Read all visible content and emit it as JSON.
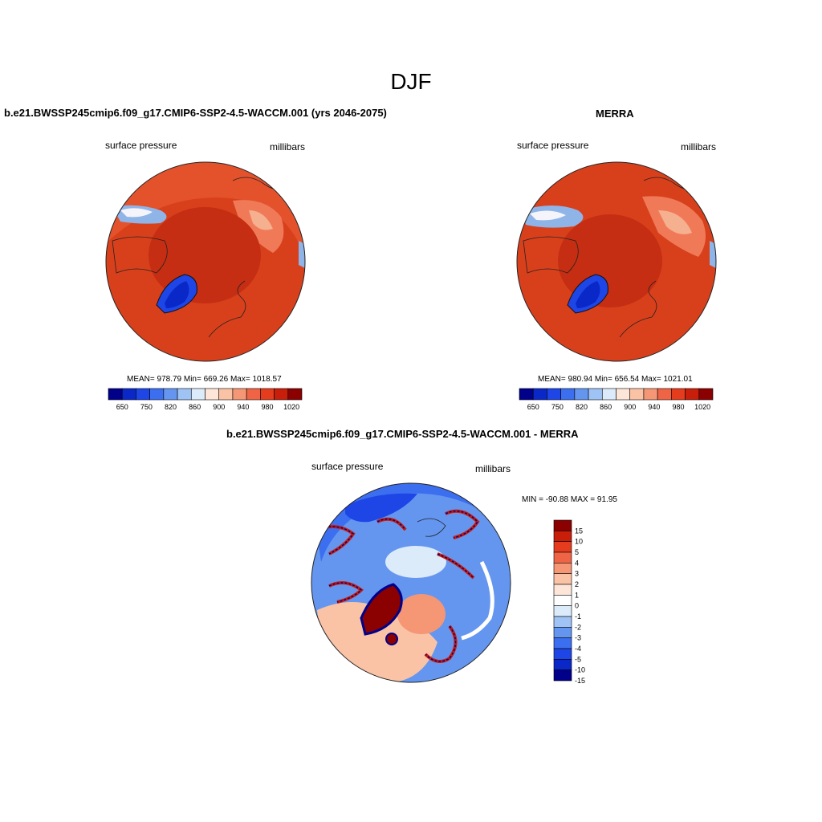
{
  "title": "DJF",
  "panels": [
    {
      "id": "model",
      "title": "b.e21.BWSSP245cmip6.f09_g17.CMIP6-SSP2-4.5-WACCM.001 (yrs 2046-2075)",
      "variable": "surface pressure",
      "units": "millibars",
      "stats": "MEAN= 978.79  Min= 669.26  Max= 1018.57"
    },
    {
      "id": "obs",
      "title": "MERRA",
      "variable": "surface pressure",
      "units": "millibars",
      "stats": "MEAN= 980.94  Min= 656.54  Max= 1021.01"
    },
    {
      "id": "diff",
      "title": "b.e21.BWSSP245cmip6.f09_g17.CMIP6-SSP2-4.5-WACCM.001 - MERRA",
      "variable": "surface pressure",
      "units": "millibars",
      "stats": "MIN = -90.88 MAX =  91.95"
    }
  ],
  "colorbar_abs": {
    "colors": [
      "#00008b",
      "#0a28c8",
      "#1e46e6",
      "#3c6ef0",
      "#6496f0",
      "#a0c3f5",
      "#dcebfa",
      "#fde6d8",
      "#fbc3a5",
      "#f59675",
      "#f06446",
      "#e63c1e",
      "#c81e0a",
      "#8b0000"
    ],
    "tick_labels": [
      "650",
      "750",
      "820",
      "860",
      "900",
      "940",
      "980",
      "1020"
    ]
  },
  "colorbar_diff": {
    "colors": [
      "#8b0000",
      "#c81e0a",
      "#e63c1e",
      "#f06446",
      "#f59675",
      "#fbc3a5",
      "#fde6d8",
      "#ffffff",
      "#dcebfa",
      "#a0c3f5",
      "#6496f0",
      "#3c6ef0",
      "#1e46e6",
      "#0a28c8",
      "#00008b"
    ],
    "tick_labels": [
      "15",
      "10",
      "5",
      "4",
      "3",
      "2",
      "1",
      "0",
      "-1",
      "-2",
      "-3",
      "-4",
      "-5",
      "-10",
      "-15"
    ]
  }
}
